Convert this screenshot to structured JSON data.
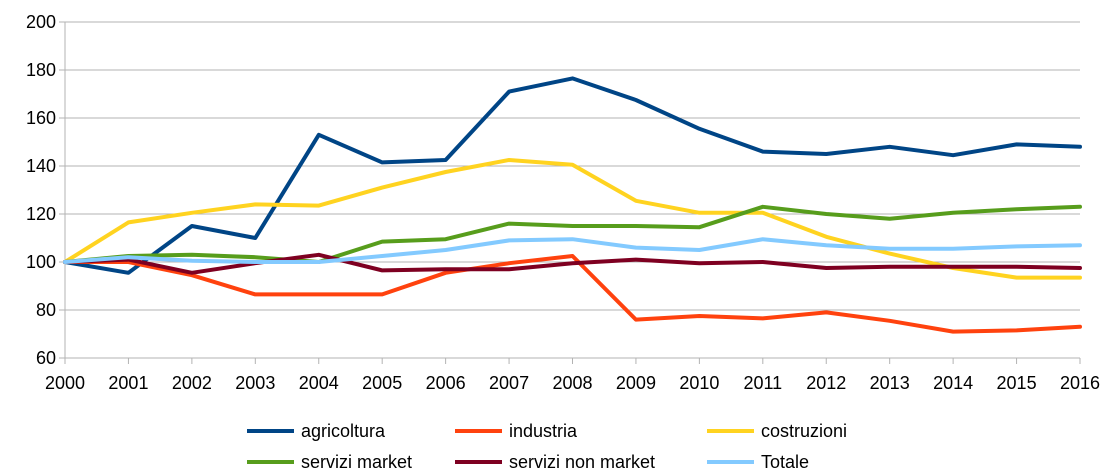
{
  "chart_data": {
    "type": "line",
    "title": "",
    "xlabel": "",
    "ylabel": "",
    "ylim": [
      60,
      200
    ],
    "y_ticks": [
      60,
      80,
      100,
      120,
      140,
      160,
      180,
      200
    ],
    "grid": "horizontal",
    "legend_position": "bottom",
    "x": [
      "2000",
      "2001",
      "2002",
      "2003",
      "2004",
      "2005",
      "2006",
      "2007",
      "2008",
      "2009",
      "2010",
      "2011",
      "2012",
      "2013",
      "2014",
      "2015",
      "2016"
    ],
    "series": [
      {
        "name": "agricoltura",
        "color": "#004586",
        "values": [
          100,
          95.5,
          115,
          110,
          153,
          141.5,
          142.5,
          171,
          176.5,
          167.5,
          155.5,
          146,
          145,
          148,
          144.5,
          149,
          148
        ]
      },
      {
        "name": "industria",
        "color": "#ff420e",
        "values": [
          100,
          100,
          94.5,
          86.5,
          86.5,
          86.5,
          95.5,
          99.5,
          102.5,
          76,
          77.5,
          76.5,
          79,
          75.5,
          71,
          71.5,
          73
        ]
      },
      {
        "name": "costruzioni",
        "color": "#ffd320",
        "values": [
          100,
          116.5,
          120.5,
          124,
          123.5,
          131,
          137.5,
          142.5,
          140.5,
          125.5,
          120.5,
          120.5,
          110.5,
          103.5,
          97.5,
          93.5,
          93.5
        ]
      },
      {
        "name": "servizi market",
        "color": "#579d1c",
        "values": [
          100,
          102.5,
          103,
          102,
          100,
          108.5,
          109.5,
          116,
          115,
          115,
          114.5,
          123,
          120,
          118,
          120.5,
          122,
          123
        ]
      },
      {
        "name": "servizi non market",
        "color": "#7e0021",
        "values": [
          100,
          101,
          95.5,
          99.5,
          103,
          96.5,
          97,
          97,
          99.5,
          101,
          99.5,
          100,
          97.5,
          98,
          98,
          98,
          97.5
        ]
      },
      {
        "name": "Totale",
        "color": "#83caff",
        "values": [
          100,
          102,
          100.5,
          100,
          100,
          102.5,
          105,
          109,
          109.5,
          106,
          105,
          109.5,
          107,
          105.5,
          105.5,
          106.5,
          107
        ]
      }
    ]
  }
}
